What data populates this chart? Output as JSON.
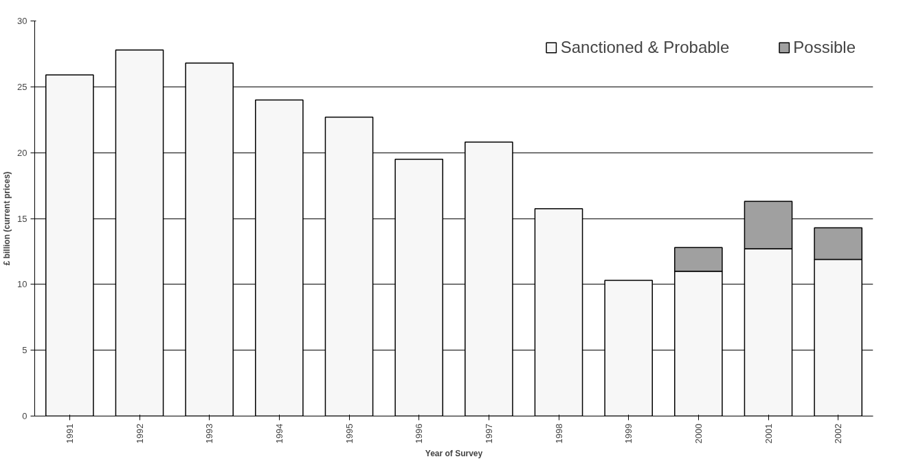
{
  "chart_data": {
    "type": "bar",
    "stacked": true,
    "xlabel": "Year of Survey",
    "ylabel": "£ billion (current prices)",
    "categories": [
      "1991",
      "1992",
      "1993",
      "1994",
      "1995",
      "1996",
      "1997",
      "1998",
      "1999",
      "2000",
      "2001",
      "2002"
    ],
    "series": [
      {
        "name": "Sanctioned & Probable",
        "color": "#f7f7f7",
        "values": [
          25.9,
          27.8,
          26.8,
          24.0,
          22.7,
          19.5,
          20.8,
          15.75,
          10.3,
          11.0,
          12.7,
          11.9
        ]
      },
      {
        "name": "Possible",
        "color": "#a0a0a0",
        "values": [
          null,
          null,
          null,
          null,
          null,
          null,
          null,
          null,
          null,
          1.8,
          3.6,
          2.4
        ]
      }
    ],
    "ylim": [
      0,
      30
    ],
    "yticks": [
      0,
      5,
      10,
      15,
      20,
      25,
      30
    ],
    "grid": "y",
    "legend": "top right"
  }
}
